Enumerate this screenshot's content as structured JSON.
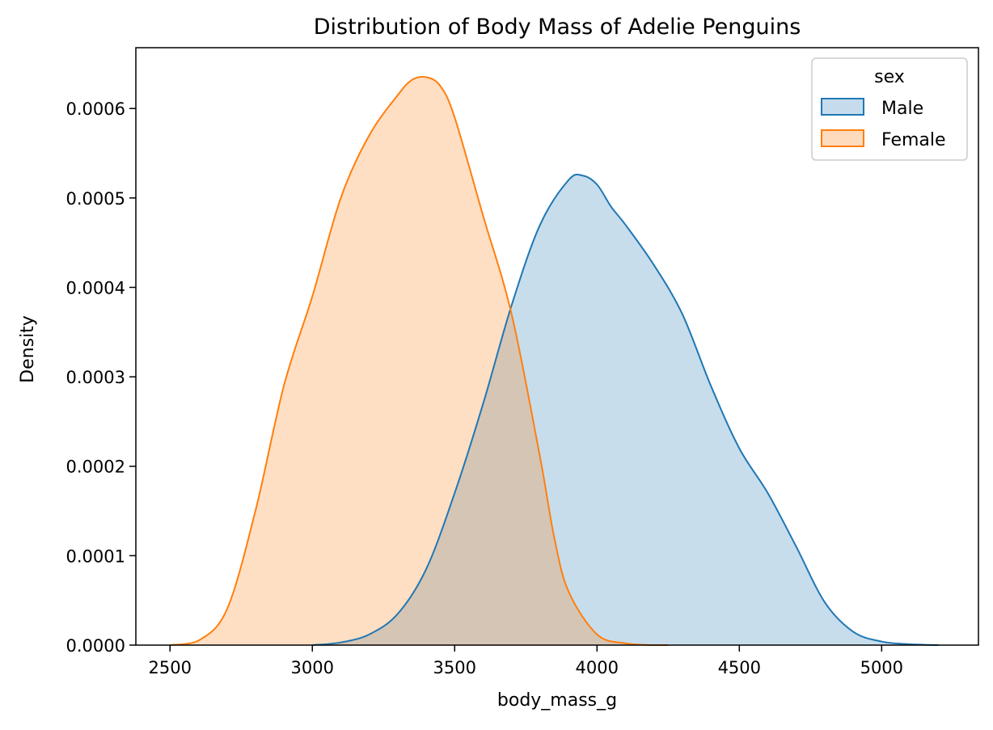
{
  "chart_data": {
    "type": "area",
    "title": "Distribution of Body Mass of Adelie Penguins",
    "xlabel": "body_mass_g",
    "ylabel": "Density",
    "xlim": [
      2380,
      5340
    ],
    "ylim": [
      0,
      0.000668
    ],
    "xticks": [
      2500,
      3000,
      3500,
      4000,
      4500,
      5000
    ],
    "yticks": [
      0.0,
      0.0001,
      0.0002,
      0.0003,
      0.0004,
      0.0005,
      0.0006
    ],
    "ytick_labels": [
      "0.0000",
      "0.0001",
      "0.0002",
      "0.0003",
      "0.0004",
      "0.0005",
      "0.0006"
    ],
    "grid": false,
    "legend": {
      "title": "sex",
      "placement": "top-right"
    },
    "series": [
      {
        "name": "Male",
        "color": "#1f77b4",
        "fill": "#c6dcec",
        "x": [
          3000,
          3100,
          3200,
          3300,
          3400,
          3500,
          3600,
          3700,
          3800,
          3900,
          3950,
          4000,
          4050,
          4100,
          4200,
          4300,
          4400,
          4500,
          4600,
          4700,
          4800,
          4900,
          5000,
          5100,
          5200
        ],
        "values": [
          0.0,
          3e-06,
          1.2e-05,
          3.5e-05,
          8.5e-05,
          0.00017,
          0.00027,
          0.00038,
          0.00047,
          0.00052,
          0.000525,
          0.000515,
          0.00049,
          0.00047,
          0.000425,
          0.00037,
          0.00029,
          0.00022,
          0.00017,
          0.00011,
          4.8e-05,
          1.5e-05,
          4e-06,
          1e-06,
          0.0
        ]
      },
      {
        "name": "Female",
        "color": "#ff7f0e",
        "fill": "#ffdbbe",
        "x": [
          2500,
          2600,
          2700,
          2800,
          2900,
          3000,
          3100,
          3200,
          3300,
          3350,
          3400,
          3450,
          3500,
          3600,
          3700,
          3800,
          3850,
          3900,
          4000,
          4100,
          4200,
          4250
        ],
        "values": [
          0.0,
          5e-06,
          4e-05,
          0.00015,
          0.00029,
          0.00039,
          0.0005,
          0.00057,
          0.000615,
          0.000632,
          0.000635,
          0.000625,
          0.00059,
          0.00048,
          0.00037,
          0.00021,
          0.00012,
          6e-05,
          1.2e-05,
          2e-06,
          0.0,
          0.0
        ]
      }
    ]
  }
}
